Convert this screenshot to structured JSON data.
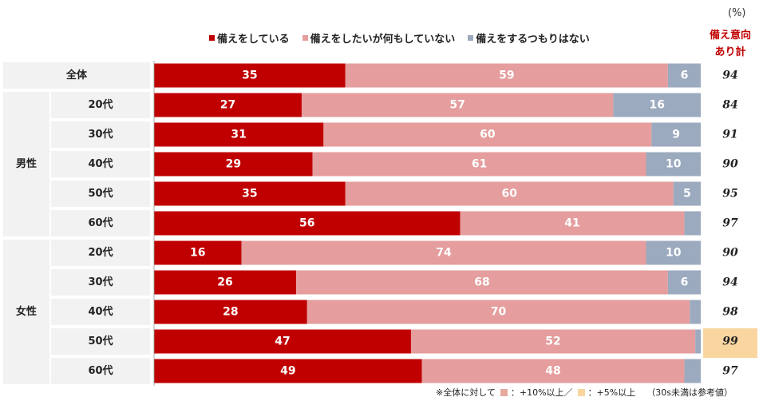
{
  "unit_label": "(%)",
  "sum_header": {
    "line1": "備え意向",
    "line2": "あり計"
  },
  "legend": [
    {
      "label": "備えをしている",
      "color": "#c00000"
    },
    {
      "label": "備えをしたいが何もしていない",
      "color": "#e59d9d"
    },
    {
      "label": "備えをするつもりはない",
      "color": "#9caabf"
    }
  ],
  "footnote": {
    "prefix": "※全体に対して",
    "item1": "：+10%以上／",
    "item1_color": "#e8a99e",
    "item2": "：+5%以上",
    "item2_color": "#f9d5a0",
    "suffix": "（30s未満は参考値）"
  },
  "chart_data": {
    "type": "stacked-bar-horizontal",
    "series_names": [
      "備えをしている",
      "備えをしたいが何もしていない",
      "備えをするつもりはない"
    ],
    "colors": [
      "#c00000",
      "#e59d9d",
      "#9caabf"
    ],
    "xlim": [
      0,
      100
    ],
    "groups": [
      {
        "label": "",
        "rows": [
          {
            "label": "全体",
            "values": [
              35,
              59,
              6
            ],
            "total": "94",
            "highlight": ""
          }
        ]
      },
      {
        "label": "男性",
        "rows": [
          {
            "label": "20代",
            "values": [
              27,
              57,
              16
            ],
            "total": "84",
            "highlight": ""
          },
          {
            "label": "30代",
            "values": [
              31,
              60,
              9
            ],
            "total": "91",
            "highlight": ""
          },
          {
            "label": "40代",
            "values": [
              29,
              61,
              10
            ],
            "total": "90",
            "highlight": ""
          },
          {
            "label": "50代",
            "values": [
              35,
              60,
              5
            ],
            "total": "95",
            "highlight": ""
          },
          {
            "label": "60代",
            "values": [
              56,
              41,
              3
            ],
            "total": "97",
            "highlight": ""
          }
        ]
      },
      {
        "label": "女性",
        "rows": [
          {
            "label": "20代",
            "values": [
              16,
              74,
              10
            ],
            "total": "90",
            "highlight": ""
          },
          {
            "label": "30代",
            "values": [
              26,
              68,
              6
            ],
            "total": "94",
            "highlight": ""
          },
          {
            "label": "40代",
            "values": [
              28,
              70,
              2
            ],
            "total": "98",
            "highlight": ""
          },
          {
            "label": "50代",
            "values": [
              47,
              52,
              1
            ],
            "total": "99",
            "highlight": "+5"
          },
          {
            "label": "60代",
            "values": [
              49,
              48,
              3
            ],
            "total": "97",
            "highlight": ""
          }
        ]
      }
    ]
  }
}
